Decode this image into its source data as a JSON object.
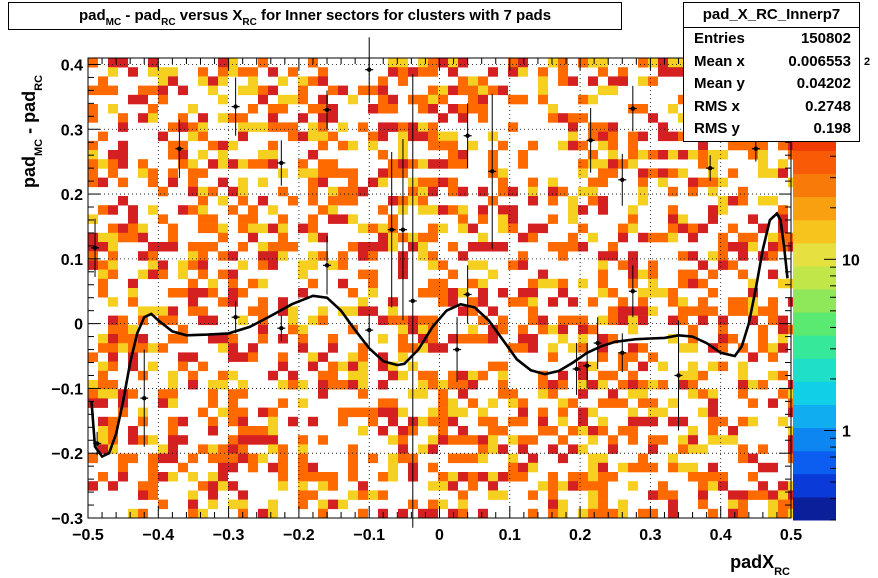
{
  "chart_data": {
    "type": "heatmap",
    "title": {
      "parts": [
        {
          "t": "pad",
          "sub": false
        },
        {
          "t": "MC",
          "sub": true
        },
        {
          "t": " - pad",
          "sub": false
        },
        {
          "t": "RC",
          "sub": true
        },
        {
          "t": " versus X",
          "sub": false
        },
        {
          "t": "RC",
          "sub": true
        },
        {
          "t": " for Inner sectors for clusters with 7 pads",
          "sub": false
        }
      ]
    },
    "xlabel": {
      "main": "padX",
      "sub": "RC"
    },
    "ylabel": {
      "parts": [
        {
          "t": "pad",
          "sub": false
        },
        {
          "t": "MC",
          "sub": true
        },
        {
          "t": " - pad",
          "sub": false
        },
        {
          "t": "RC",
          "sub": true
        }
      ]
    },
    "xlim": [
      -0.5,
      0.5
    ],
    "ylim": [
      -0.3,
      0.41
    ],
    "x_ticks": [
      "-0.5",
      "-0.4",
      "-0.3",
      "-0.2",
      "-0.1",
      "0",
      "0.1",
      "0.2",
      "0.3",
      "0.4",
      "0.5"
    ],
    "y_ticks": [
      "-0.3",
      "-0.2",
      "-0.1",
      "0",
      "0.1",
      "0.2",
      "0.3",
      "0.4"
    ],
    "grid": true,
    "z_scale": "log",
    "z_range": [
      0.3,
      150
    ],
    "z_ticks": [
      {
        "label": "1",
        "value": 1
      },
      {
        "label": "10",
        "value": 10
      }
    ],
    "z_exponent_label": "2",
    "colors": {
      "low": "#d42020",
      "mid": "#ff6a00",
      "high": "#f6d020",
      "palette": [
        "#0b1f9a",
        "#0a3bd8",
        "#0b5ef0",
        "#0d86f2",
        "#10aef0",
        "#12cfe8",
        "#1ee0c8",
        "#35e89a",
        "#5aea72",
        "#8ee85a",
        "#c0e64a",
        "#e6e040",
        "#f6c41c",
        "#f8a010",
        "#f87a08",
        "#f85a06",
        "#f03c04",
        "#e02404",
        "#c81004",
        "#b00404"
      ]
    },
    "profile_points": [
      {
        "x": -0.49,
        "y": 0.117,
        "err": 0.045
      },
      {
        "x": -0.487,
        "y": -0.185,
        "err": 0.018
      },
      {
        "x": -0.42,
        "y": -0.115,
        "err": 0.075
      },
      {
        "x": -0.37,
        "y": 0.27,
        "err": 0.045
      },
      {
        "x": -0.29,
        "y": 0.335,
        "err": 0.045
      },
      {
        "x": -0.29,
        "y": 0.01,
        "err": 0.025
      },
      {
        "x": -0.225,
        "y": 0.248,
        "err": 0.035
      },
      {
        "x": -0.225,
        "y": -0.007,
        "err": 0.02
      },
      {
        "x": -0.16,
        "y": 0.09,
        "err": 0.045
      },
      {
        "x": -0.16,
        "y": 0.33,
        "err": 0.03
      },
      {
        "x": -0.1,
        "y": 0.392,
        "err": 0.05
      },
      {
        "x": -0.1,
        "y": -0.01,
        "err": 0.025
      },
      {
        "x": -0.068,
        "y": 0.145,
        "err": 0.12
      },
      {
        "x": -0.052,
        "y": 0.145,
        "err": 0.14
      },
      {
        "x": -0.038,
        "y": 0.035,
        "err": 0.35
      },
      {
        "x": 0.025,
        "y": -0.04,
        "err": 0.05
      },
      {
        "x": 0.04,
        "y": 0.29,
        "err": 0.05
      },
      {
        "x": 0.04,
        "y": 0.045,
        "err": 0.045
      },
      {
        "x": 0.075,
        "y": 0.235,
        "err": 0.12
      },
      {
        "x": 0.195,
        "y": -0.07,
        "err": 0.04
      },
      {
        "x": 0.21,
        "y": -0.065,
        "err": 0.035
      },
      {
        "x": 0.215,
        "y": 0.283,
        "err": 0.05
      },
      {
        "x": 0.225,
        "y": -0.03,
        "err": 0.04
      },
      {
        "x": 0.26,
        "y": 0.222,
        "err": 0.04
      },
      {
        "x": 0.26,
        "y": -0.045,
        "err": 0.03
      },
      {
        "x": 0.275,
        "y": 0.332,
        "err": 0.035
      },
      {
        "x": 0.275,
        "y": 0.05,
        "err": 0.04
      },
      {
        "x": 0.34,
        "y": -0.08,
        "err": 0.085
      },
      {
        "x": 0.385,
        "y": 0.24,
        "err": 0.02
      },
      {
        "x": 0.45,
        "y": 0.27,
        "err": 0.02
      }
    ],
    "fit_curve": {
      "x": [
        -0.495,
        -0.49,
        -0.48,
        -0.47,
        -0.46,
        -0.45,
        -0.44,
        -0.43,
        -0.42,
        -0.41,
        -0.4,
        -0.38,
        -0.36,
        -0.33,
        -0.3,
        -0.27,
        -0.24,
        -0.21,
        -0.18,
        -0.16,
        -0.14,
        -0.12,
        -0.1,
        -0.08,
        -0.06,
        -0.05,
        -0.03,
        -0.01,
        0.01,
        0.03,
        0.05,
        0.07,
        0.09,
        0.11,
        0.13,
        0.15,
        0.17,
        0.19,
        0.21,
        0.23,
        0.25,
        0.28,
        0.3,
        0.32,
        0.34,
        0.36,
        0.38,
        0.4,
        0.42,
        0.43,
        0.44,
        0.45,
        0.46,
        0.47,
        0.48,
        0.485,
        0.49,
        0.495
      ],
      "y": [
        -0.12,
        -0.19,
        -0.205,
        -0.2,
        -0.17,
        -0.12,
        -0.06,
        -0.015,
        0.01,
        0.015,
        0.005,
        -0.012,
        -0.018,
        -0.017,
        -0.015,
        -0.005,
        0.012,
        0.03,
        0.043,
        0.04,
        0.02,
        -0.01,
        -0.038,
        -0.058,
        -0.064,
        -0.062,
        -0.04,
        -0.005,
        0.02,
        0.03,
        0.025,
        0.005,
        -0.025,
        -0.055,
        -0.072,
        -0.078,
        -0.073,
        -0.06,
        -0.045,
        -0.035,
        -0.028,
        -0.024,
        -0.023,
        -0.022,
        -0.018,
        -0.02,
        -0.03,
        -0.045,
        -0.05,
        -0.035,
        0.0,
        0.055,
        0.115,
        0.16,
        0.17,
        0.16,
        0.12,
        0.07
      ]
    }
  },
  "stats": {
    "title": "pad_X_RC_Innerp7",
    "rows": [
      {
        "label": "Entries",
        "value": "150802"
      },
      {
        "label": "Mean x",
        "value": "0.006553"
      },
      {
        "label": "Mean y",
        "value": "0.04202"
      },
      {
        "label": "RMS x",
        "value": "0.2748"
      },
      {
        "label": "RMS y",
        "value": "0.198"
      }
    ]
  }
}
